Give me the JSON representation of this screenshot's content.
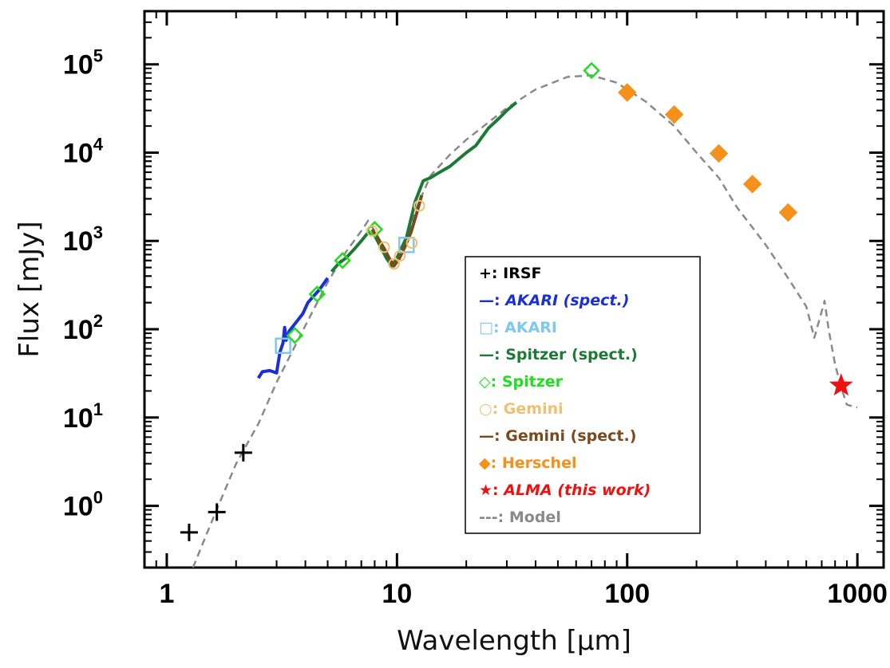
{
  "chart_data": {
    "type": "scatter",
    "xlabel": "Wavelength [μm]",
    "ylabel": "Flux [mJy]",
    "xscale": "log",
    "yscale": "log",
    "xlim": [
      0.8,
      1300
    ],
    "ylim": [
      0.2,
      400000
    ],
    "x_ticks": [
      {
        "value": 1,
        "label": "1"
      },
      {
        "value": 10,
        "label": "10"
      },
      {
        "value": 100,
        "label": "100"
      },
      {
        "value": 1000,
        "label": "1000"
      }
    ],
    "y_ticks": [
      {
        "value": 1,
        "base": "10",
        "exp": "0"
      },
      {
        "value": 10,
        "base": "10",
        "exp": "1"
      },
      {
        "value": 100,
        "base": "10",
        "exp": "2"
      },
      {
        "value": 1000,
        "base": "10",
        "exp": "3"
      },
      {
        "value": 10000,
        "base": "10",
        "exp": "4"
      },
      {
        "value": 100000,
        "base": "10",
        "exp": "5"
      }
    ],
    "legend_position": "center-right",
    "series": [
      {
        "name": "IRSF",
        "prefix": "+:",
        "color": "#000000",
        "marker": "plus",
        "italic": false,
        "points": [
          [
            1.25,
            0.5
          ],
          [
            1.65,
            0.85
          ],
          [
            2.15,
            4.0
          ]
        ]
      },
      {
        "name": "AKARI (spect.)",
        "prefix": "—:",
        "color": "#1a2fd6",
        "marker": "line",
        "italic": true,
        "points": [
          [
            2.5,
            28
          ],
          [
            2.6,
            33
          ],
          [
            2.8,
            34
          ],
          [
            3.0,
            32
          ],
          [
            3.1,
            55
          ],
          [
            3.2,
            70
          ],
          [
            3.25,
            105
          ],
          [
            3.3,
            75
          ],
          [
            3.4,
            95
          ],
          [
            3.6,
            115
          ],
          [
            3.9,
            150
          ],
          [
            4.1,
            200
          ],
          [
            4.3,
            230
          ],
          [
            4.6,
            280
          ],
          [
            5.0,
            380
          ]
        ]
      },
      {
        "name": "AKARI",
        "prefix": "□:",
        "color": "#7ec8f0",
        "marker": "square",
        "italic": false,
        "points": [
          [
            3.2,
            65
          ],
          [
            11.0,
            900
          ]
        ]
      },
      {
        "name": "Spitzer (spect.)",
        "prefix": "—:",
        "color": "#1d7a35",
        "marker": "line",
        "italic": false,
        "points": [
          [
            5.2,
            450
          ],
          [
            5.6,
            560
          ],
          [
            6.0,
            640
          ],
          [
            6.5,
            800
          ],
          [
            7.0,
            1000
          ],
          [
            7.5,
            1250
          ],
          [
            8.0,
            1150
          ],
          [
            8.5,
            850
          ],
          [
            9.0,
            640
          ],
          [
            9.5,
            520
          ],
          [
            10.0,
            640
          ],
          [
            11.0,
            1100
          ],
          [
            12.0,
            2800
          ],
          [
            13.0,
            4800
          ],
          [
            14.0,
            5200
          ],
          [
            15.0,
            5800
          ],
          [
            17.0,
            7000
          ],
          [
            20.0,
            10000
          ],
          [
            22.0,
            12000
          ],
          [
            25.0,
            19000
          ],
          [
            28.0,
            25000
          ],
          [
            30.0,
            30000
          ],
          [
            33.0,
            37000
          ]
        ]
      },
      {
        "name": "Spitzer",
        "prefix": "◇:",
        "color": "#22dd22",
        "marker": "diamond",
        "italic": false,
        "points": [
          [
            3.6,
            85
          ],
          [
            4.5,
            250
          ],
          [
            5.8,
            600
          ],
          [
            8.0,
            1350
          ],
          [
            70.0,
            85000
          ]
        ]
      },
      {
        "name": "Gemini",
        "prefix": "○:",
        "color": "#f0c070",
        "marker": "circle",
        "italic": false,
        "points": [
          [
            7.8,
            1300
          ],
          [
            8.8,
            850
          ],
          [
            9.7,
            550
          ],
          [
            10.3,
            680
          ],
          [
            11.6,
            950
          ],
          [
            12.5,
            2500
          ]
        ]
      },
      {
        "name": "Gemini (spect.)",
        "prefix": "—:",
        "color": "#7a4a1e",
        "marker": "line",
        "italic": false,
        "points": [
          [
            7.8,
            1350
          ],
          [
            8.3,
            1050
          ],
          [
            8.8,
            820
          ],
          [
            9.3,
            620
          ],
          [
            9.7,
            520
          ],
          [
            10.2,
            620
          ],
          [
            10.8,
            850
          ],
          [
            11.5,
            1250
          ],
          [
            12.2,
            2100
          ],
          [
            12.8,
            3300
          ]
        ]
      },
      {
        "name": "Herschel",
        "prefix": "◆:",
        "color": "#f5901a",
        "marker": "filled-diamond",
        "italic": false,
        "points": [
          [
            100,
            48000
          ],
          [
            160,
            27000
          ],
          [
            250,
            9800
          ],
          [
            350,
            4400
          ],
          [
            500,
            2100
          ]
        ]
      },
      {
        "name": "ALMA (this work)",
        "prefix": "★:",
        "color": "#ee1111",
        "marker": "star",
        "italic": true,
        "points": [
          [
            850,
            23
          ]
        ]
      },
      {
        "name": "Model",
        "prefix": "---:",
        "color": "#8a8a8a",
        "marker": "dashed",
        "italic": false,
        "points": [
          [
            1.3,
            0.2
          ],
          [
            1.5,
            0.5
          ],
          [
            1.7,
            1.1
          ],
          [
            2.0,
            3.0
          ],
          [
            2.5,
            8.5
          ],
          [
            3.0,
            25
          ],
          [
            4.0,
            110
          ],
          [
            5.0,
            340
          ],
          [
            6.0,
            750
          ],
          [
            7.0,
            1300
          ],
          [
            7.5,
            1700
          ],
          [
            8.3,
            1100
          ],
          [
            9.0,
            700
          ],
          [
            9.6,
            520
          ],
          [
            10.5,
            750
          ],
          [
            12.0,
            2200
          ],
          [
            14.0,
            5500
          ],
          [
            17.0,
            9500
          ],
          [
            20.0,
            14000
          ],
          [
            30.0,
            32000
          ],
          [
            40.0,
            52000
          ],
          [
            55.0,
            72000
          ],
          [
            70.0,
            75000
          ],
          [
            90.0,
            62000
          ],
          [
            120.0,
            38000
          ],
          [
            160.0,
            20000
          ],
          [
            200.0,
            10000
          ],
          [
            250.0,
            5200
          ],
          [
            300.0,
            2400
          ],
          [
            400.0,
            900
          ],
          [
            500.0,
            380
          ],
          [
            600.0,
            180
          ],
          [
            650.0,
            80
          ],
          [
            700.0,
            160
          ],
          [
            720.0,
            210
          ],
          [
            750.0,
            100
          ],
          [
            800.0,
            40
          ],
          [
            850.0,
            22
          ],
          [
            900.0,
            14
          ],
          [
            1000.0,
            13
          ]
        ]
      }
    ]
  }
}
